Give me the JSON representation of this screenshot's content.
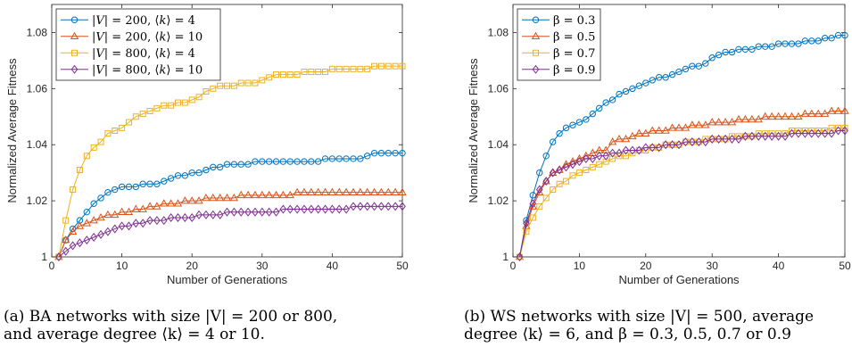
{
  "chart_data": [
    {
      "type": "line",
      "xlabel": "Number of Generations",
      "ylabel": "Normalized Average Fitness",
      "xlim": [
        0,
        50
      ],
      "ylim": [
        1,
        1.09
      ],
      "xticks": [
        0,
        10,
        20,
        30,
        40,
        50
      ],
      "yticks": [
        1,
        1.02,
        1.04,
        1.06,
        1.08
      ],
      "xtick_labels": [
        "0",
        "10",
        "20",
        "30",
        "40",
        "50"
      ],
      "ytick_labels": [
        "1",
        "1.02",
        "1.04",
        "1.06",
        "1.08"
      ],
      "grid": false,
      "legend_position": "top-left",
      "x": [
        1,
        2,
        3,
        4,
        5,
        6,
        7,
        8,
        9,
        10,
        11,
        12,
        13,
        14,
        15,
        16,
        17,
        18,
        19,
        20,
        21,
        22,
        23,
        24,
        25,
        26,
        27,
        28,
        29,
        30,
        31,
        32,
        33,
        34,
        35,
        36,
        37,
        38,
        39,
        40,
        41,
        42,
        43,
        44,
        45,
        46,
        47,
        48,
        49,
        50
      ],
      "series": [
        {
          "name": "|V| = 200, ⟨k⟩ = 4",
          "color": "#0072bd",
          "marker": "circle",
          "values": [
            1.0,
            1.006,
            1.01,
            1.013,
            1.016,
            1.019,
            1.021,
            1.023,
            1.024,
            1.025,
            1.025,
            1.025,
            1.026,
            1.026,
            1.026,
            1.027,
            1.028,
            1.029,
            1.029,
            1.03,
            1.03,
            1.031,
            1.032,
            1.032,
            1.033,
            1.033,
            1.033,
            1.033,
            1.034,
            1.034,
            1.034,
            1.034,
            1.034,
            1.034,
            1.034,
            1.034,
            1.034,
            1.034,
            1.035,
            1.035,
            1.035,
            1.035,
            1.035,
            1.035,
            1.036,
            1.037,
            1.037,
            1.037,
            1.037,
            1.037
          ]
        },
        {
          "name": "|V| = 200, ⟨k⟩ = 10",
          "color": "#d95319",
          "marker": "triangle",
          "values": [
            1.0,
            1.006,
            1.009,
            1.011,
            1.012,
            1.013,
            1.014,
            1.015,
            1.015,
            1.016,
            1.016,
            1.017,
            1.017,
            1.018,
            1.018,
            1.019,
            1.019,
            1.019,
            1.02,
            1.02,
            1.02,
            1.021,
            1.021,
            1.021,
            1.021,
            1.021,
            1.022,
            1.022,
            1.022,
            1.022,
            1.022,
            1.022,
            1.022,
            1.022,
            1.023,
            1.023,
            1.023,
            1.023,
            1.023,
            1.023,
            1.023,
            1.023,
            1.023,
            1.023,
            1.023,
            1.023,
            1.023,
            1.023,
            1.023,
            1.023
          ]
        },
        {
          "name": "|V| = 800, ⟨k⟩ = 4",
          "color": "#edb120",
          "marker": "square",
          "values": [
            1.0,
            1.013,
            1.024,
            1.031,
            1.036,
            1.039,
            1.041,
            1.044,
            1.045,
            1.046,
            1.048,
            1.05,
            1.051,
            1.052,
            1.053,
            1.054,
            1.054,
            1.055,
            1.055,
            1.056,
            1.057,
            1.059,
            1.06,
            1.061,
            1.061,
            1.061,
            1.062,
            1.062,
            1.062,
            1.063,
            1.064,
            1.065,
            1.065,
            1.065,
            1.065,
            1.066,
            1.066,
            1.066,
            1.066,
            1.067,
            1.067,
            1.067,
            1.067,
            1.067,
            1.067,
            1.068,
            1.068,
            1.068,
            1.068,
            1.068
          ]
        },
        {
          "name": "|V| = 800, ⟨k⟩ = 10",
          "color": "#7e2f8e",
          "marker": "diamond",
          "values": [
            1.0,
            1.002,
            1.004,
            1.005,
            1.006,
            1.007,
            1.008,
            1.009,
            1.01,
            1.011,
            1.011,
            1.012,
            1.012,
            1.013,
            1.013,
            1.013,
            1.014,
            1.014,
            1.014,
            1.014,
            1.015,
            1.015,
            1.015,
            1.015,
            1.016,
            1.016,
            1.016,
            1.016,
            1.016,
            1.016,
            1.016,
            1.016,
            1.017,
            1.017,
            1.017,
            1.017,
            1.017,
            1.017,
            1.017,
            1.017,
            1.017,
            1.017,
            1.018,
            1.018,
            1.018,
            1.018,
            1.018,
            1.018,
            1.018,
            1.018
          ]
        }
      ]
    },
    {
      "type": "line",
      "xlabel": "Number of Generations",
      "ylabel": "Normalized Average Fitness",
      "xlim": [
        0,
        50
      ],
      "ylim": [
        1,
        1.09
      ],
      "xticks": [
        0,
        10,
        20,
        30,
        40,
        50
      ],
      "yticks": [
        1,
        1.02,
        1.04,
        1.06,
        1.08
      ],
      "xtick_labels": [
        "0",
        "10",
        "20",
        "30",
        "40",
        "50"
      ],
      "ytick_labels": [
        "1",
        "1.02",
        "1.04",
        "1.06",
        "1.08"
      ],
      "grid": false,
      "legend_position": "top-left",
      "x": [
        1,
        2,
        3,
        4,
        5,
        6,
        7,
        8,
        9,
        10,
        11,
        12,
        13,
        14,
        15,
        16,
        17,
        18,
        19,
        20,
        21,
        22,
        23,
        24,
        25,
        26,
        27,
        28,
        29,
        30,
        31,
        32,
        33,
        34,
        35,
        36,
        37,
        38,
        39,
        40,
        41,
        42,
        43,
        44,
        45,
        46,
        47,
        48,
        49,
        50
      ],
      "series": [
        {
          "name": "β = 0.3",
          "color": "#0072bd",
          "marker": "circle",
          "values": [
            1.0,
            1.013,
            1.022,
            1.03,
            1.036,
            1.041,
            1.044,
            1.046,
            1.047,
            1.048,
            1.049,
            1.051,
            1.053,
            1.055,
            1.056,
            1.058,
            1.059,
            1.06,
            1.061,
            1.062,
            1.063,
            1.064,
            1.064,
            1.065,
            1.066,
            1.067,
            1.068,
            1.068,
            1.069,
            1.071,
            1.072,
            1.073,
            1.073,
            1.074,
            1.074,
            1.074,
            1.075,
            1.075,
            1.075,
            1.076,
            1.076,
            1.076,
            1.076,
            1.077,
            1.077,
            1.077,
            1.078,
            1.078,
            1.079,
            1.079
          ]
        },
        {
          "name": "β = 0.5",
          "color": "#d95319",
          "marker": "triangle",
          "values": [
            1.0,
            1.011,
            1.018,
            1.023,
            1.027,
            1.03,
            1.031,
            1.033,
            1.034,
            1.035,
            1.036,
            1.037,
            1.038,
            1.038,
            1.041,
            1.042,
            1.042,
            1.043,
            1.044,
            1.044,
            1.045,
            1.045,
            1.045,
            1.046,
            1.046,
            1.046,
            1.047,
            1.047,
            1.047,
            1.048,
            1.048,
            1.048,
            1.048,
            1.049,
            1.049,
            1.049,
            1.049,
            1.05,
            1.05,
            1.05,
            1.05,
            1.05,
            1.05,
            1.051,
            1.051,
            1.051,
            1.051,
            1.052,
            1.052,
            1.052
          ]
        },
        {
          "name": "β = 0.7",
          "color": "#edb120",
          "marker": "square",
          "values": [
            1.0,
            1.009,
            1.014,
            1.018,
            1.021,
            1.024,
            1.026,
            1.027,
            1.029,
            1.03,
            1.031,
            1.032,
            1.033,
            1.034,
            1.035,
            1.036,
            1.036,
            1.037,
            1.038,
            1.038,
            1.039,
            1.039,
            1.04,
            1.04,
            1.04,
            1.041,
            1.041,
            1.041,
            1.042,
            1.042,
            1.042,
            1.042,
            1.043,
            1.043,
            1.043,
            1.043,
            1.044,
            1.044,
            1.044,
            1.044,
            1.044,
            1.045,
            1.045,
            1.045,
            1.045,
            1.045,
            1.045,
            1.046,
            1.046,
            1.046
          ]
        },
        {
          "name": "β = 0.9",
          "color": "#7e2f8e",
          "marker": "diamond",
          "values": [
            1.0,
            1.012,
            1.019,
            1.024,
            1.027,
            1.03,
            1.031,
            1.032,
            1.033,
            1.034,
            1.035,
            1.035,
            1.036,
            1.036,
            1.037,
            1.037,
            1.038,
            1.038,
            1.038,
            1.039,
            1.039,
            1.039,
            1.04,
            1.04,
            1.04,
            1.041,
            1.041,
            1.041,
            1.041,
            1.042,
            1.042,
            1.042,
            1.042,
            1.042,
            1.043,
            1.043,
            1.043,
            1.043,
            1.043,
            1.043,
            1.043,
            1.044,
            1.044,
            1.044,
            1.044,
            1.044,
            1.044,
            1.044,
            1.045,
            1.045
          ]
        }
      ]
    }
  ],
  "captions": [
    {
      "line1": "(a) BA networks with size |V| = 200 or 800,",
      "line2": "and average degree ⟨k⟩ = 4 or 10."
    },
    {
      "line1": "(b) WS networks with size |V| = 500, average",
      "line2": "degree ⟨k⟩ = 6, and β = 0.3, 0.5, 0.7 or 0.9"
    }
  ]
}
